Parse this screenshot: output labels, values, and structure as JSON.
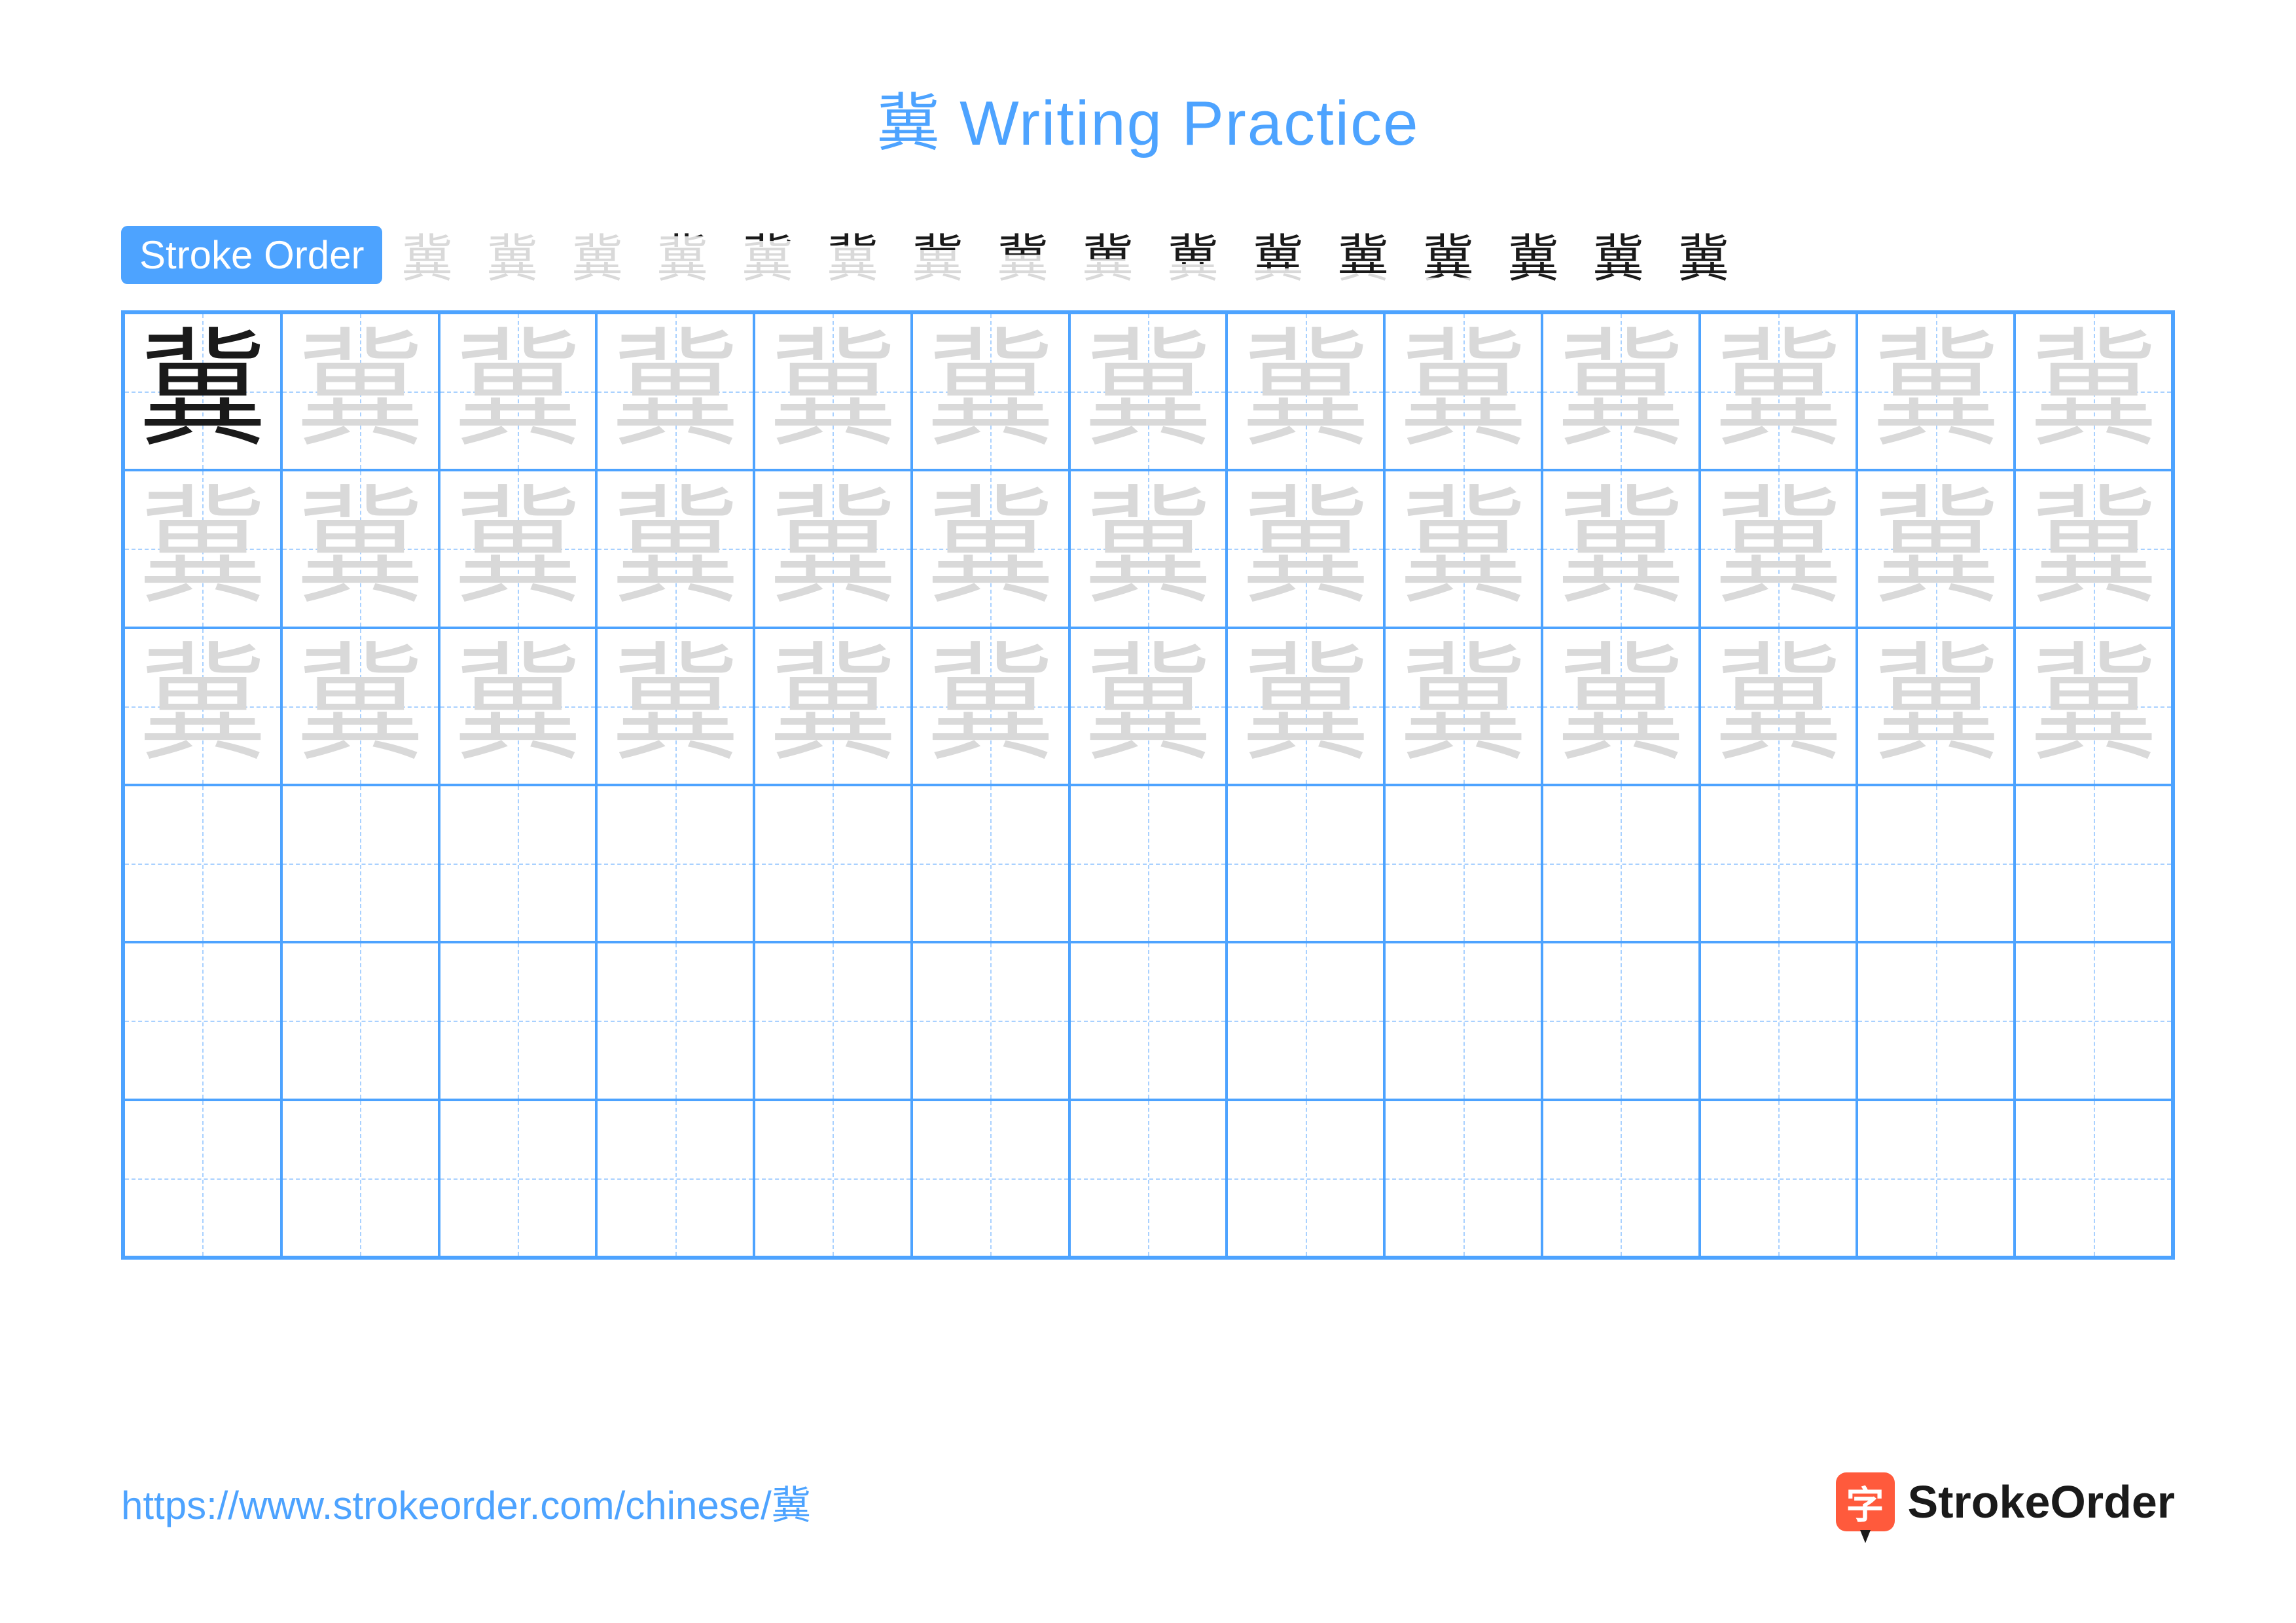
{
  "title": "冀 Writing Practice",
  "stroke_order_label": "Stroke Order",
  "character": "冀",
  "stroke_count": 16,
  "colors": {
    "accent": "#4da3ff",
    "grid_border": "#4da3ff",
    "guide_line": "#a9d1ff",
    "char_dark": "#1a1a1a",
    "char_light": "#d9d9d9",
    "logo_bg": "#ff5a3c",
    "background": "#ffffff"
  },
  "grid": {
    "columns": 13,
    "rows": 6,
    "trace_rows": 3,
    "empty_rows": 3,
    "dark_cells": 1,
    "cell_font_size": 195,
    "border_width": 4,
    "inner_border_width": 2
  },
  "stroke_steps": {
    "count": 16,
    "glyph": "冀",
    "step_box_size": 100,
    "step_font_size": 78
  },
  "footer": {
    "url": "https://www.strokeorder.com/chinese/冀",
    "logo_char": "字",
    "logo_text": "StrokeOrder"
  },
  "typography": {
    "title_fontsize": 96,
    "badge_fontsize": 60,
    "footer_fontsize": 60,
    "logo_fontsize": 70,
    "font_family_ui": "Helvetica Neue, Arial, sans-serif",
    "font_family_char": "KaiTi, STKaiti, serif"
  }
}
